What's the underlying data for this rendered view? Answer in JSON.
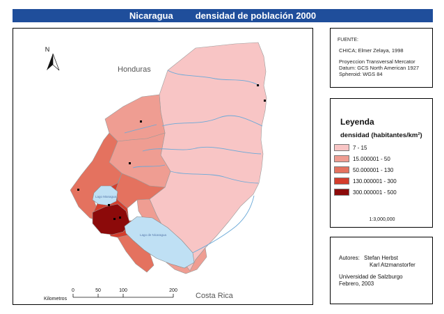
{
  "title": {
    "country": "Nicaragua",
    "topic": "densidad de población 2000"
  },
  "map": {
    "neighbors": {
      "north": "Honduras",
      "south": "Costa Rica"
    },
    "lakes": {
      "managua": "Lago Managua",
      "nicaragua": "Lago de Nicaragua"
    },
    "north_arrow": "N",
    "scale_bar": {
      "unit_label": "Kilometros",
      "ticks": [
        "0",
        "50",
        "100",
        "200"
      ]
    }
  },
  "source": {
    "label": "FUENTE:",
    "lines": [
      "CHICA; Elmer Zelaya, 1998",
      "Proyeccion Transversal Mercator",
      "Datum: GCS North American 1927",
      "Spheroid: WGS 84"
    ]
  },
  "legend": {
    "title": "Leyenda",
    "subtitle": "densidad (habitantes/km²)",
    "classes": [
      {
        "label": "7 - 15",
        "color": "#f8c5c5"
      },
      {
        "label": "15.000001 - 50",
        "color": "#ef9d92"
      },
      {
        "label": "50.000001 - 130",
        "color": "#e4725f"
      },
      {
        "label": "130.000001 - 300",
        "color": "#d43d2c"
      },
      {
        "label": "300.000001 - 500",
        "color": "#8c0a0a"
      }
    ],
    "scale": "1:3,000,000"
  },
  "authors": {
    "label": "Autores:",
    "names": [
      "Stefan Herbst",
      "Karl Atzmanstorfer"
    ],
    "university": "Universidad de Salzburgo",
    "date": "Febrero, 2003"
  },
  "colors": {
    "title_bar": "#1f4e9b",
    "water": "#bfe0f4",
    "river": "#6aa9d8",
    "outline": "#888888"
  }
}
